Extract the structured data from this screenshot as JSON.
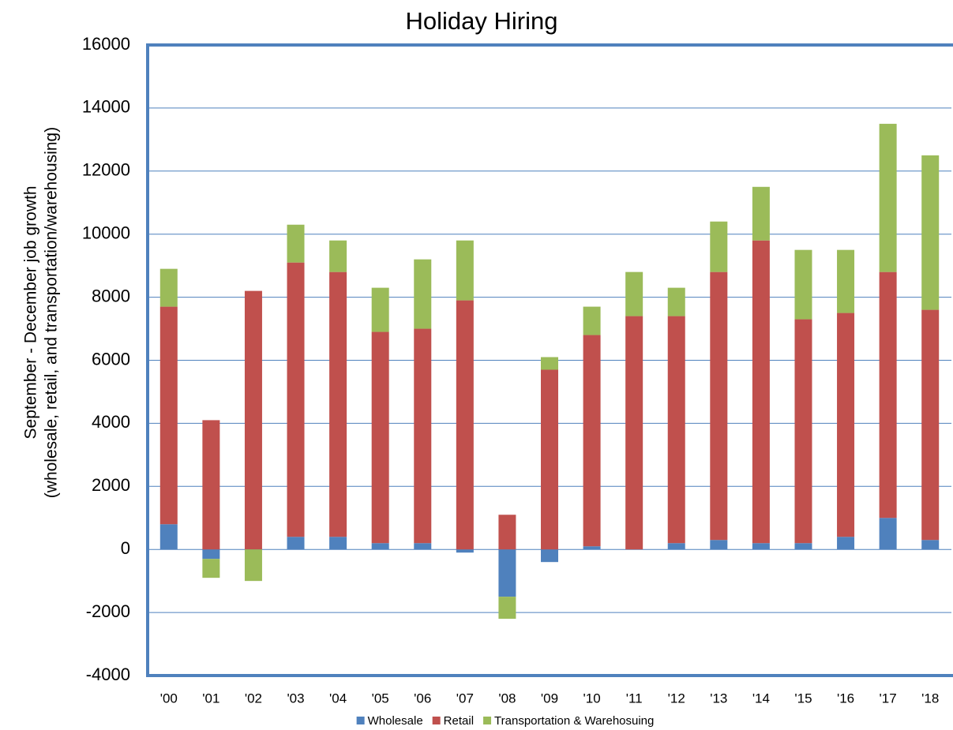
{
  "chart_data": {
    "type": "stacked_bar",
    "title": "Holiday Hiring",
    "y_label": [
      "September - December job growth",
      "(wholesale, retail, and transportation/warehousing)"
    ],
    "categories": [
      "'00",
      "'01",
      "'02",
      "'03",
      "'04",
      "'05",
      "'06",
      "'07",
      "'08",
      "'09",
      "'10",
      "'11",
      "'12",
      "'13",
      "'14",
      "'15",
      "'16",
      "'17",
      "'18"
    ],
    "series": [
      {
        "name": "Wholesale",
        "color": "#4f81bd",
        "values": [
          800,
          -300,
          0,
          400,
          400,
          200,
          200,
          -100,
          -1500,
          -400,
          100,
          0,
          200,
          300,
          200,
          200,
          400,
          1000,
          300
        ]
      },
      {
        "name": "Retail",
        "color": "#c0504d",
        "values": [
          6900,
          4100,
          8200,
          8700,
          8400,
          6700,
          6800,
          7900,
          1100,
          5700,
          6700,
          7400,
          7200,
          8500,
          9600,
          7100,
          7100,
          7800,
          7300
        ]
      },
      {
        "name": "Transportation & Warehosuing",
        "color": "#9bbb59",
        "values": [
          1200,
          -600,
          -1000,
          1200,
          1000,
          1400,
          2200,
          1900,
          -700,
          400,
          900,
          1400,
          900,
          1600,
          1700,
          2200,
          2000,
          4700,
          4900
        ]
      }
    ],
    "ylim": [
      -4000,
      16000
    ],
    "yticks": [
      -4000,
      -2000,
      0,
      2000,
      4000,
      6000,
      8000,
      10000,
      12000,
      14000,
      16000
    ],
    "grid": true,
    "legend": "bottom"
  }
}
